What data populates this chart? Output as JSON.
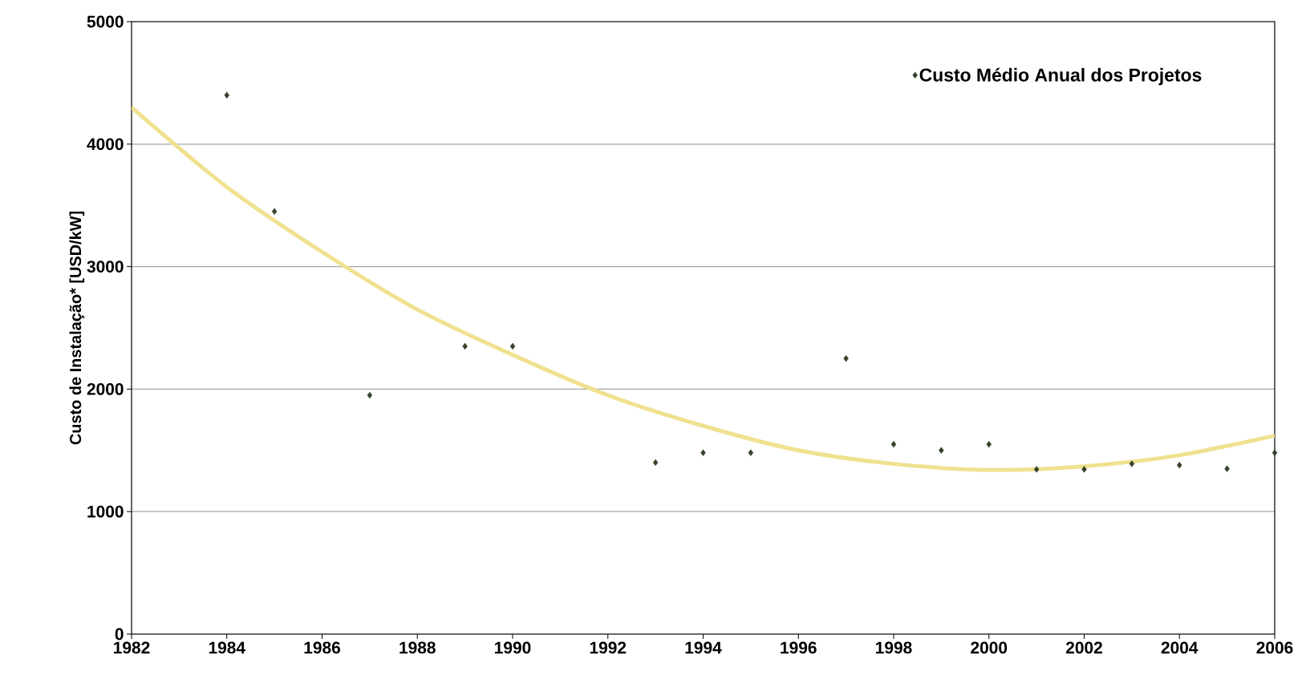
{
  "chart_data": {
    "type": "scatter",
    "ylabel": "Custo de Instalação* [USD/kW]",
    "marker": "diamond",
    "grid": "y",
    "legend": "top right",
    "xlim": [
      1982,
      2006
    ],
    "xticks": [
      1982,
      1984,
      1986,
      1988,
      1990,
      1992,
      1994,
      1996,
      1998,
      2000,
      2002,
      2004,
      2006
    ],
    "ylim": [
      0,
      5000
    ],
    "yticks": [
      0,
      1000,
      2000,
      3000,
      4000,
      5000
    ],
    "series": [
      {
        "name": "Custo Médio Anual dos Projetos",
        "color": "#34422a",
        "x": [
          1984,
          1985,
          1987,
          1989,
          1990,
          1993,
          1994,
          1995,
          1997,
          1998,
          1999,
          2000,
          2001,
          2002,
          2003,
          2004,
          2005,
          2006
        ],
        "values": [
          4400,
          3450,
          1950,
          2350,
          2350,
          1400,
          1480,
          1480,
          2250,
          1550,
          1500,
          1550,
          1345,
          1345,
          1390,
          1380,
          1350,
          1480
        ]
      },
      {
        "type": "line",
        "marker": "none",
        "color": "#f0e190",
        "x": [
          1982,
          1984,
          1986,
          1988,
          1990,
          1992,
          1994,
          1996,
          1998,
          2000,
          2002,
          2004,
          2006
        ],
        "values": [
          4300,
          3650,
          3120,
          2650,
          2280,
          1950,
          1700,
          1500,
          1390,
          1340,
          1370,
          1460,
          1620
        ]
      }
    ]
  }
}
